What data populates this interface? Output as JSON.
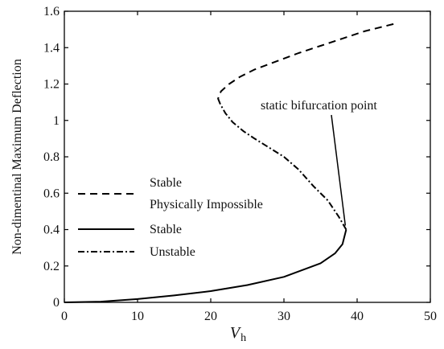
{
  "chart_data": {
    "type": "line",
    "title": "",
    "xlabel": "V",
    "xlabel_subscript": "h",
    "ylabel": "Non-dimentinal Maximum Deflection",
    "xlim": [
      0,
      50
    ],
    "ylim": [
      0,
      1.6
    ],
    "x_ticks": [
      "0",
      "10",
      "20",
      "30",
      "40",
      "50"
    ],
    "y_ticks": [
      "0",
      "0.2",
      "0.4",
      "0.6",
      "0.8",
      "1",
      "1.2",
      "1.4",
      "1.6"
    ],
    "grid": false,
    "legend_position": "left",
    "legend": [
      {
        "label": "Stable",
        "label2": "Physically Impossible",
        "style": "dashed"
      },
      {
        "label": "Stable",
        "style": "solid"
      },
      {
        "label": "Unstable",
        "style": "dashdot"
      }
    ],
    "series": [
      {
        "label_ref": 1,
        "style": "solid",
        "x": [
          0,
          5,
          10,
          15,
          20,
          25,
          30,
          35,
          37,
          38,
          38.5
        ],
        "y": [
          0,
          0.004,
          0.018,
          0.038,
          0.062,
          0.095,
          0.14,
          0.215,
          0.27,
          0.32,
          0.4
        ]
      },
      {
        "label_ref": 2,
        "style": "dashdot",
        "x": [
          38.5,
          37.5,
          36,
          34,
          32,
          30,
          28,
          26,
          24.5,
          23,
          22,
          21.3
        ],
        "y": [
          0.4,
          0.47,
          0.56,
          0.64,
          0.73,
          0.8,
          0.85,
          0.9,
          0.94,
          0.99,
          1.04,
          1.09
        ]
      },
      {
        "label_ref": 0,
        "style": "dashed",
        "x": [
          21.3,
          21.0,
          21.4,
          22.5,
          24,
          26,
          28,
          30,
          32,
          35,
          38,
          41,
          45
        ],
        "y": [
          1.09,
          1.12,
          1.16,
          1.2,
          1.24,
          1.28,
          1.31,
          1.34,
          1.37,
          1.41,
          1.45,
          1.49,
          1.53
        ]
      }
    ],
    "annotations": [
      {
        "text": "static bifurcation point",
        "x": 38.5,
        "y": 0.4
      }
    ]
  }
}
